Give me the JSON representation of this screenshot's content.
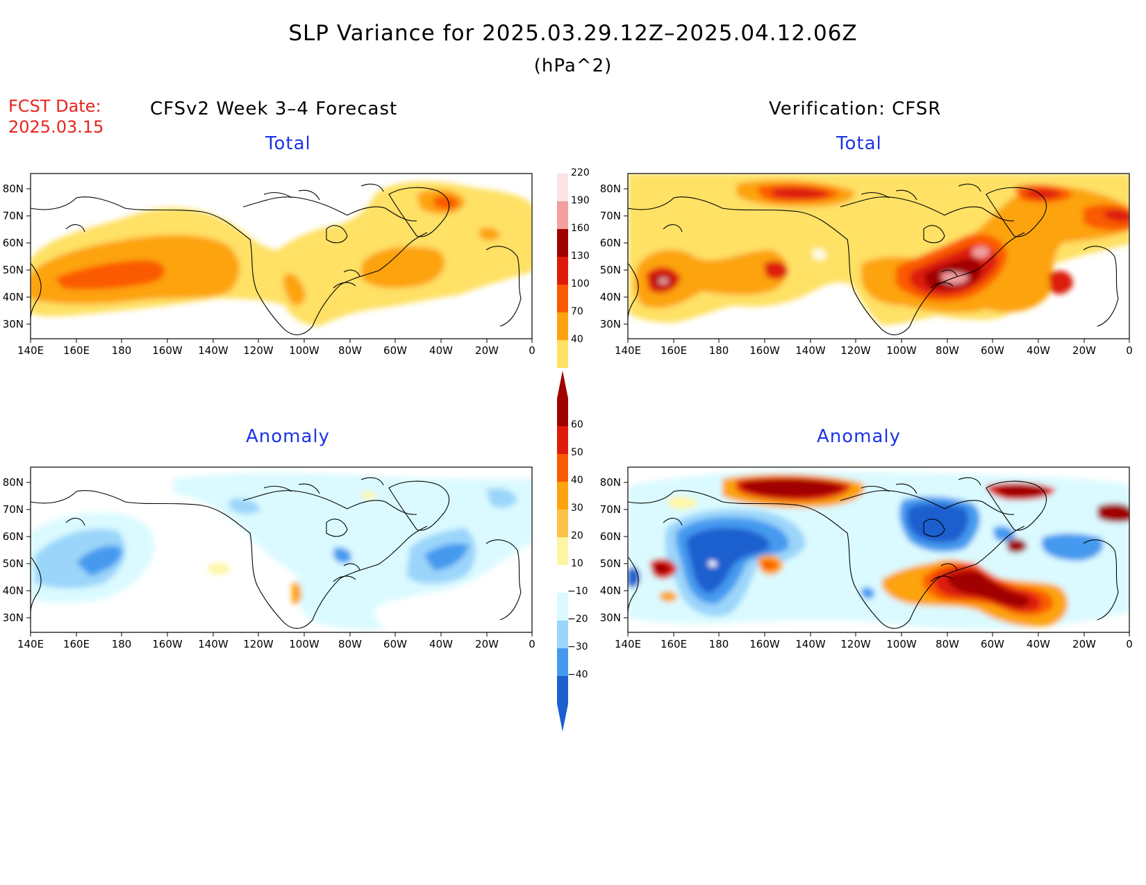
{
  "title": "SLP Variance for 2025.03.29.12Z–2025.04.12.06Z",
  "units": "(hPa^2)",
  "fcst_label": "FCST Date:",
  "fcst_date": "2025.03.15",
  "left_header": "CFSv2 Week 3–4 Forecast",
  "right_header": "Verification: CFSR",
  "panels": [
    {
      "title": "Total"
    },
    {
      "title": "Total"
    },
    {
      "title": "Anomaly"
    },
    {
      "title": "Anomaly"
    }
  ],
  "axes": {
    "lat_labels": [
      "80N",
      "70N",
      "60N",
      "50N",
      "40N",
      "30N"
    ],
    "lon_labels": [
      "140E",
      "160E",
      "180",
      "160W",
      "140W",
      "120W",
      "100W",
      "80W",
      "60W",
      "40W",
      "20W",
      "0"
    ]
  },
  "colorbar_total": {
    "labels": [
      "220",
      "190",
      "160",
      "130",
      "100",
      "70",
      "40"
    ],
    "colors": [
      "#fde3e3",
      "#f2a0a0",
      "#a00000",
      "#dd1c0c",
      "#fa5a00",
      "#fda30f",
      "#fee165"
    ]
  },
  "colorbar_anomaly": {
    "labels": [
      "60",
      "50",
      "40",
      "30",
      "20",
      "10",
      "−10",
      "−20",
      "−30",
      "−40"
    ],
    "colors": [
      "#a00000",
      "#dd1c0c",
      "#fa5a00",
      "#fda30f",
      "#fdc247",
      "#fef5a4",
      "#ffffff",
      "#dafaff",
      "#9bd5fa",
      "#459aef",
      "#1d5fcf"
    ]
  }
}
